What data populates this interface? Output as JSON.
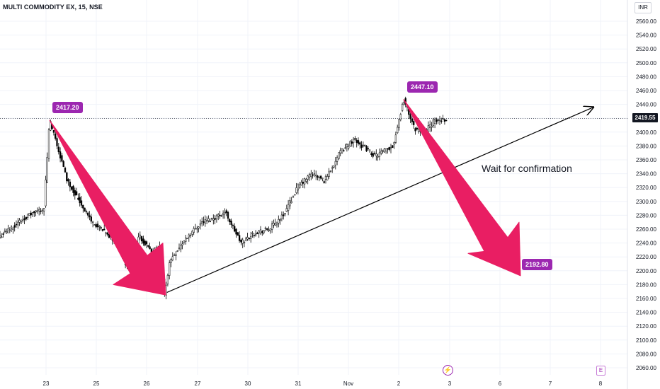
{
  "header": {
    "title": "MULTI COMMODITY EX, 15, NSE"
  },
  "currency": "INR",
  "last_price": "2419.55",
  "annotations": {
    "callouts": [
      "2417.20",
      "2447.10",
      "2192.80"
    ],
    "note": "Wait for confirmation"
  },
  "events": {
    "lightning_icon": "bolt-icon",
    "earnings_label": "E"
  },
  "colors": {
    "background": "#ffffff",
    "candle": "#000000",
    "arrow": "#e91e63",
    "callout": "#9c27b0",
    "last_price_tag": "#131722"
  },
  "chart_data": {
    "type": "candlestick",
    "title": "MULTI COMMODITY EX, 15, NSE",
    "y_axis_side": "right",
    "y_ticks": [
      2060,
      2080,
      2100,
      2120,
      2140,
      2160,
      2180,
      2200,
      2220,
      2240,
      2260,
      2280,
      2300,
      2320,
      2340,
      2360,
      2380,
      2400,
      2420,
      2440,
      2460,
      2480,
      2500,
      2520,
      2540,
      2560
    ],
    "ylim": [
      2052,
      2572
    ],
    "x_tick_labels": [
      "23",
      "25",
      "26",
      "27",
      "30",
      "31",
      "Nov",
      "2",
      "3",
      "6",
      "7",
      "8"
    ],
    "grid": true,
    "price_path": [
      {
        "t": "22 (prior)",
        "close": 2250
      },
      {
        "t": "22",
        "close": 2280
      },
      {
        "t": "23",
        "close": 2290
      },
      {
        "t": "23 (high)",
        "close": 2417.2
      },
      {
        "t": "23",
        "close": 2330
      },
      {
        "t": "24",
        "close": 2270
      },
      {
        "t": "24",
        "close": 2240
      },
      {
        "t": "25",
        "close": 2205
      },
      {
        "t": "25",
        "close": 2250
      },
      {
        "t": "25",
        "close": 2225
      },
      {
        "t": "26",
        "close": 2235
      },
      {
        "t": "26 (low)",
        "close": 2165
      },
      {
        "t": "26",
        "close": 2215
      },
      {
        "t": "27",
        "close": 2250
      },
      {
        "t": "27",
        "close": 2270
      },
      {
        "t": "27",
        "close": 2275
      },
      {
        "t": "27",
        "close": 2285
      },
      {
        "t": "30",
        "close": 2240
      },
      {
        "t": "30",
        "close": 2255
      },
      {
        "t": "31",
        "close": 2260
      },
      {
        "t": "31",
        "close": 2280
      },
      {
        "t": "31",
        "close": 2320
      },
      {
        "t": "31",
        "close": 2340
      },
      {
        "t": "Nov",
        "close": 2330
      },
      {
        "t": "Nov",
        "close": 2370
      },
      {
        "t": "Nov",
        "close": 2390
      },
      {
        "t": "1",
        "close": 2365
      },
      {
        "t": "2",
        "close": 2380
      },
      {
        "t": "2 (high)",
        "close": 2447.1
      },
      {
        "t": "2",
        "close": 2405
      },
      {
        "t": "2",
        "close": 2400
      },
      {
        "t": "3",
        "close": 2415
      },
      {
        "t": "3",
        "close": 2419.55
      }
    ],
    "last_price": 2419.55,
    "annotations": {
      "peak_1": 2417.2,
      "trough": 2165,
      "peak_2": 2447.1,
      "projected_target": 2192.8,
      "note": "Wait for confirmation",
      "trendline": "ascending, from 26 Oct low through ~2440 near 8 Nov"
    }
  }
}
